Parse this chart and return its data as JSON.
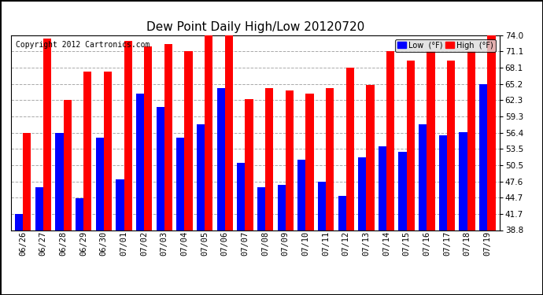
{
  "title": "Dew Point Daily High/Low 20120720",
  "copyright": "Copyright 2012 Cartronics.com",
  "dates": [
    "06/26",
    "06/27",
    "06/28",
    "06/29",
    "06/30",
    "07/01",
    "07/02",
    "07/03",
    "07/04",
    "07/05",
    "07/06",
    "07/07",
    "07/08",
    "07/09",
    "07/10",
    "07/11",
    "07/12",
    "07/13",
    "07/14",
    "07/15",
    "07/16",
    "07/17",
    "07/18",
    "07/19"
  ],
  "high_values": [
    56.4,
    73.5,
    62.3,
    67.5,
    67.5,
    73.0,
    72.0,
    72.5,
    71.1,
    74.0,
    74.0,
    62.5,
    64.5,
    64.0,
    63.5,
    64.5,
    68.1,
    65.0,
    71.1,
    69.5,
    71.1,
    69.5,
    71.1,
    74.0
  ],
  "low_values": [
    41.7,
    46.5,
    56.4,
    44.5,
    55.5,
    48.0,
    63.5,
    61.0,
    55.5,
    58.0,
    64.5,
    51.0,
    46.5,
    47.0,
    51.5,
    47.5,
    45.0,
    52.0,
    54.0,
    53.0,
    58.0,
    56.0,
    56.5,
    65.2
  ],
  "high_color": "#FF0000",
  "low_color": "#0000FF",
  "bg_color": "#FFFFFF",
  "plot_bg_color": "#FFFFFF",
  "grid_color": "#AAAAAA",
  "ylim_min": 38.8,
  "ylim_max": 74.0,
  "yticks": [
    38.8,
    41.7,
    44.7,
    47.6,
    50.5,
    53.5,
    56.4,
    59.3,
    62.3,
    65.2,
    68.1,
    71.1,
    74.0
  ],
  "bar_width": 0.4,
  "legend_low_label": "Low  (°F)",
  "legend_high_label": "High  (°F)",
  "title_fontsize": 11,
  "copyright_fontsize": 7,
  "tick_fontsize": 7.5,
  "outer_border_color": "#000000"
}
